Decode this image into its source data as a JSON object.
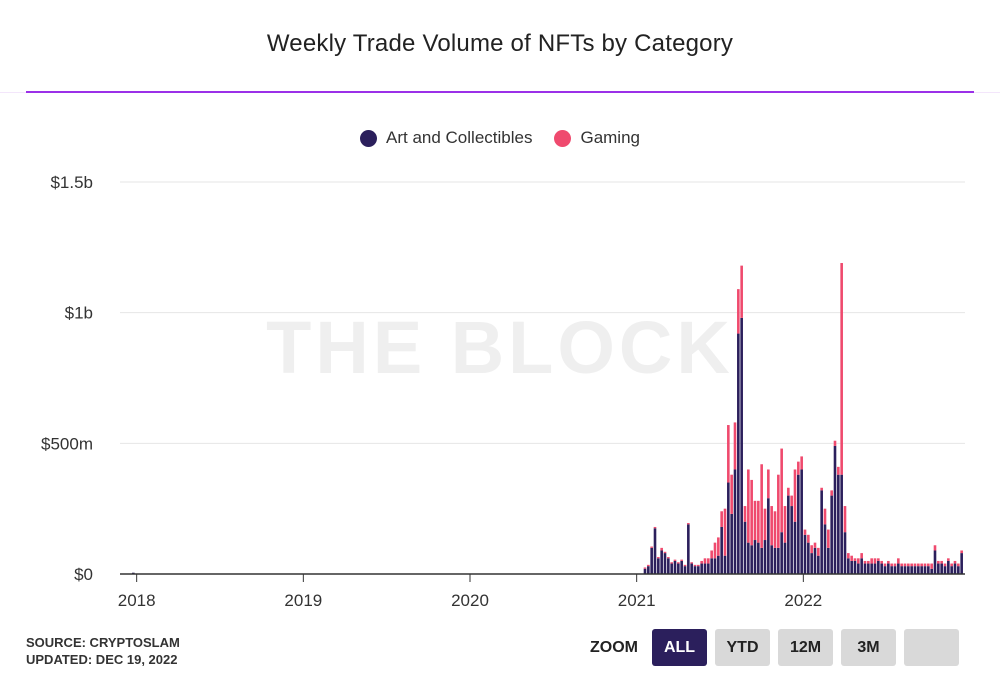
{
  "header": {
    "title": "Weekly Trade Volume of NFTs by Category"
  },
  "watermark": "THE BLOCK",
  "footer": {
    "source": "SOURCE: CRYPTOSLAM",
    "updated": "UPDATED: DEC 19, 2022"
  },
  "zoom": {
    "label": "ZOOM",
    "buttons": [
      {
        "label": "ALL",
        "active": true
      },
      {
        "label": "YTD",
        "active": false
      },
      {
        "label": "12M",
        "active": false
      },
      {
        "label": "3M",
        "active": false
      },
      {
        "label": "",
        "active": false
      }
    ]
  },
  "colors": {
    "art": "#2b1f5c",
    "gaming": "#ef4a6e",
    "grid": "#e6e6e6",
    "axis": "#333333"
  },
  "chart_data": {
    "type": "bar",
    "stacked": true,
    "title": "Weekly Trade Volume of NFTs by Category",
    "legend_position": "top-center",
    "grid": true,
    "ylim": [
      0,
      1500
    ],
    "yticks": [
      {
        "value": 0,
        "label": "$0"
      },
      {
        "value": 500,
        "label": "$500m"
      },
      {
        "value": 1000,
        "label": "$1b"
      },
      {
        "value": 1500,
        "label": "$1.5b"
      }
    ],
    "xlim": [
      2017.9,
      2022.97
    ],
    "xticks": [
      {
        "value": 2018.0,
        "label": "2018"
      },
      {
        "value": 2019.0,
        "label": "2019"
      },
      {
        "value": 2020.0,
        "label": "2020"
      },
      {
        "value": 2021.0,
        "label": "2021"
      },
      {
        "value": 2022.0,
        "label": "2022"
      }
    ],
    "series": [
      {
        "name": "Art and Collectibles",
        "color": "#2b1f5c"
      },
      {
        "name": "Gaming",
        "color": "#ef4a6e"
      }
    ],
    "x": [
      2017.98,
      2021.05,
      2021.07,
      2021.09,
      2021.11,
      2021.13,
      2021.15,
      2021.17,
      2021.19,
      2021.21,
      2021.23,
      2021.25,
      2021.27,
      2021.29,
      2021.31,
      2021.33,
      2021.35,
      2021.37,
      2021.39,
      2021.41,
      2021.43,
      2021.45,
      2021.47,
      2021.49,
      2021.51,
      2021.53,
      2021.55,
      2021.57,
      2021.59,
      2021.61,
      2021.63,
      2021.65,
      2021.67,
      2021.69,
      2021.71,
      2021.73,
      2021.75,
      2021.77,
      2021.79,
      2021.81,
      2021.83,
      2021.85,
      2021.87,
      2021.89,
      2021.91,
      2021.93,
      2021.95,
      2021.97,
      2021.99,
      2022.01,
      2022.03,
      2022.05,
      2022.07,
      2022.09,
      2022.11,
      2022.13,
      2022.15,
      2022.17,
      2022.19,
      2022.21,
      2022.23,
      2022.25,
      2022.27,
      2022.29,
      2022.31,
      2022.33,
      2022.35,
      2022.37,
      2022.39,
      2022.41,
      2022.43,
      2022.45,
      2022.47,
      2022.49,
      2022.51,
      2022.53,
      2022.55,
      2022.57,
      2022.59,
      2022.61,
      2022.63,
      2022.65,
      2022.67,
      2022.69,
      2022.71,
      2022.73,
      2022.75,
      2022.77,
      2022.79,
      2022.81,
      2022.83,
      2022.85,
      2022.87,
      2022.89,
      2022.91,
      2022.93,
      2022.95
    ],
    "values_art": [
      5,
      20,
      30,
      100,
      175,
      60,
      90,
      80,
      60,
      40,
      50,
      40,
      50,
      30,
      190,
      40,
      30,
      30,
      40,
      40,
      40,
      60,
      60,
      70,
      180,
      70,
      350,
      230,
      400,
      920,
      980,
      200,
      120,
      110,
      130,
      120,
      100,
      130,
      290,
      110,
      100,
      100,
      160,
      120,
      300,
      260,
      200,
      380,
      400,
      150,
      120,
      80,
      100,
      70,
      320,
      190,
      100,
      300,
      490,
      380,
      380,
      160,
      60,
      50,
      50,
      40,
      60,
      40,
      40,
      40,
      40,
      50,
      40,
      30,
      40,
      30,
      30,
      40,
      30,
      30,
      30,
      30,
      30,
      30,
      30,
      30,
      30,
      20,
      90,
      40,
      40,
      30,
      50,
      30,
      40,
      30,
      80
    ],
    "values_gaming": [
      0,
      5,
      5,
      5,
      5,
      5,
      10,
      5,
      5,
      5,
      5,
      5,
      5,
      5,
      5,
      5,
      5,
      5,
      10,
      20,
      20,
      30,
      60,
      70,
      60,
      180,
      220,
      150,
      180,
      170,
      200,
      60,
      280,
      250,
      150,
      160,
      320,
      120,
      110,
      150,
      140,
      280,
      320,
      140,
      30,
      40,
      200,
      50,
      50,
      20,
      30,
      30,
      20,
      30,
      10,
      60,
      70,
      20,
      20,
      30,
      810,
      100,
      20,
      20,
      10,
      20,
      20,
      10,
      10,
      20,
      20,
      10,
      10,
      10,
      10,
      10,
      10,
      20,
      10,
      10,
      10,
      10,
      10,
      10,
      10,
      10,
      10,
      20,
      20,
      10,
      10,
      10,
      10,
      10,
      10,
      10,
      10
    ]
  }
}
